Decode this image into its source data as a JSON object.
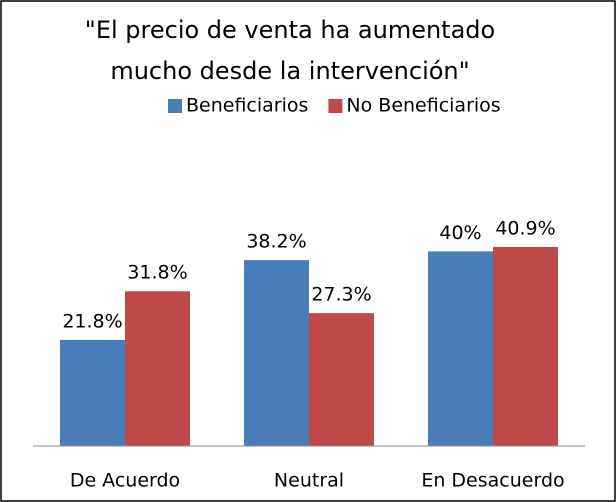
{
  "chart_data": {
    "type": "bar",
    "title": [
      "\"El precio de venta ha aumentado",
      "mucho desde la intervención\""
    ],
    "categories": [
      "De Acuerdo",
      "Neutral",
      "En Desacuerdo"
    ],
    "series": [
      {
        "name": "Beneficiarios",
        "color": "#4a7ebb",
        "values": [
          21.8,
          38.2,
          40
        ],
        "value_labels": [
          "21.8%",
          "38.2%",
          "40%"
        ]
      },
      {
        "name": "No Beneficiarios",
        "color": "#be4b48",
        "values": [
          31.8,
          27.3,
          40.9
        ],
        "value_labels": [
          "31.8%",
          "27.3%",
          "40.9%"
        ]
      }
    ],
    "ylim": [
      0,
      45
    ],
    "legend": "top"
  }
}
